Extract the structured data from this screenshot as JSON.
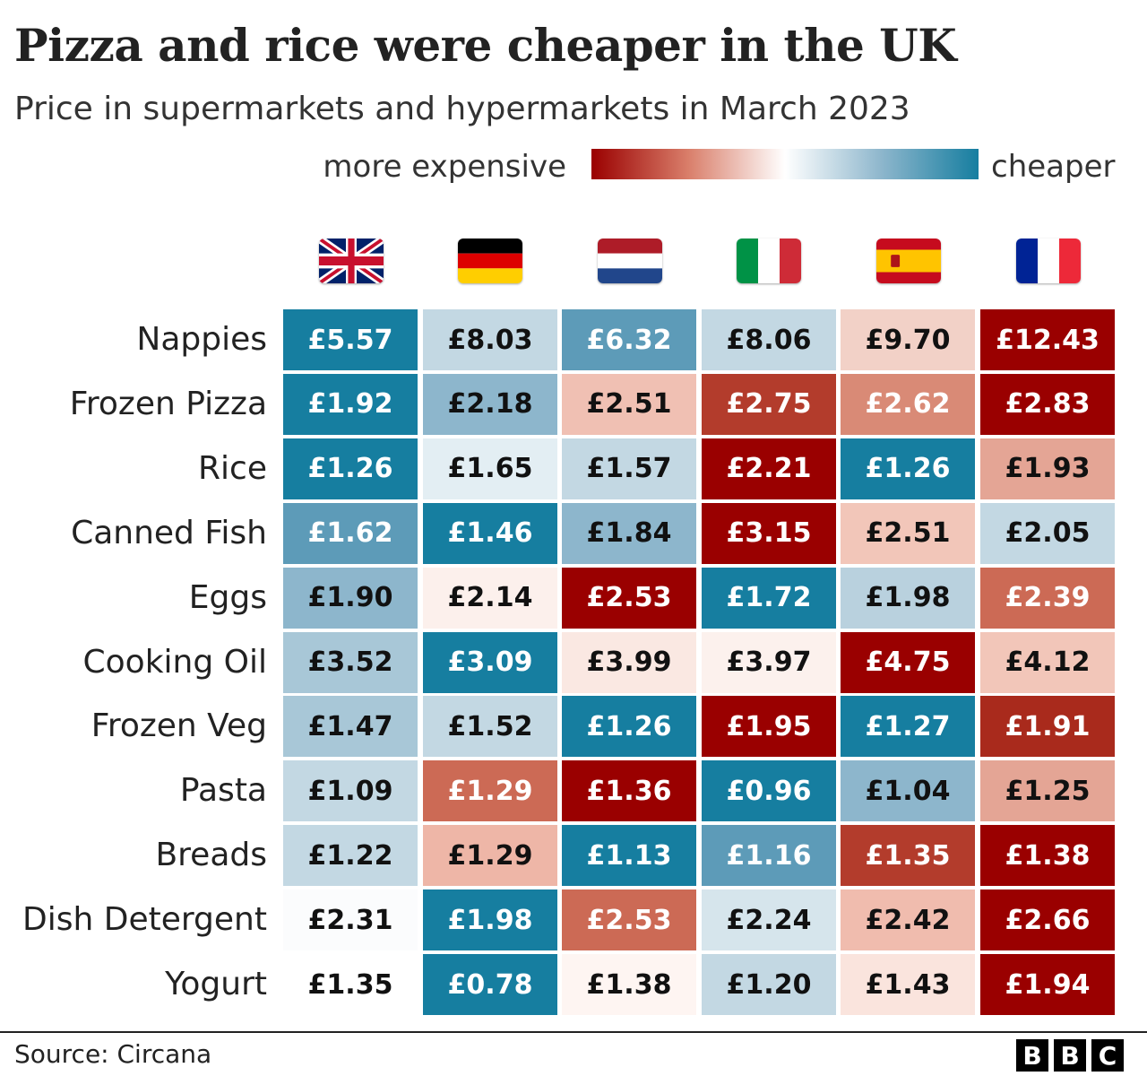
{
  "title": "Pizza and rice were cheaper in the UK",
  "subtitle": "Price in supermarkets and hypermarkets in March 2023",
  "legend": {
    "left_label": "more expensive",
    "right_label": "cheaper",
    "colors": [
      "#9a0000",
      "#ffffff",
      "#167ea0"
    ]
  },
  "footer": {
    "source": "Source: Circana",
    "logo": [
      "B",
      "B",
      "C"
    ]
  },
  "chart_data": {
    "type": "heatmap",
    "title": "Pizza and rice were cheaper in the UK",
    "subtitle": "Price in supermarkets and hypermarkets in March 2023",
    "columns": [
      {
        "icon": "uk-flag-icon"
      },
      {
        "icon": "germany-flag-icon"
      },
      {
        "icon": "netherlands-flag-icon"
      },
      {
        "icon": "italy-flag-icon"
      },
      {
        "icon": "spain-flag-icon"
      },
      {
        "icon": "france-flag-icon"
      }
    ],
    "rows": [
      {
        "label": "Nappies",
        "values": [
          "£5.57",
          "£8.03",
          "£6.32",
          "£8.06",
          "£9.70",
          "£12.43"
        ],
        "colors": [
          "#167ea0",
          "#c3d8e3",
          "#5d9bb8",
          "#c3d8e3",
          "#f2d1c7",
          "#9a0000"
        ]
      },
      {
        "label": "Frozen Pizza",
        "values": [
          "£1.92",
          "£2.18",
          "£2.51",
          "£2.75",
          "£2.62",
          "£2.83"
        ],
        "colors": [
          "#167ea0",
          "#8db6cc",
          "#f0c0b3",
          "#b33c2c",
          "#d98a76",
          "#9a0000"
        ]
      },
      {
        "label": "Rice",
        "values": [
          "£1.26",
          "£1.65",
          "£1.57",
          "£2.21",
          "£1.26",
          "£1.93"
        ],
        "colors": [
          "#167ea0",
          "#e3eef3",
          "#c3d8e3",
          "#9a0000",
          "#167ea0",
          "#e4a595"
        ]
      },
      {
        "label": "Canned Fish",
        "values": [
          "£1.62",
          "£1.46",
          "£1.84",
          "£3.15",
          "£2.51",
          "£2.05"
        ],
        "colors": [
          "#5d9bb8",
          "#167ea0",
          "#8db6cc",
          "#9a0000",
          "#f2c6b9",
          "#c3d8e3"
        ]
      },
      {
        "label": "Eggs",
        "values": [
          "£1.90",
          "£2.14",
          "£2.53",
          "£1.72",
          "£1.98",
          "£2.39"
        ],
        "colors": [
          "#8db6cc",
          "#fcf0ec",
          "#9a0000",
          "#167ea0",
          "#b9d1de",
          "#cc6a55"
        ]
      },
      {
        "label": "Cooking Oil",
        "values": [
          "£3.52",
          "£3.09",
          "£3.99",
          "£3.97",
          "£4.75",
          "£4.12"
        ],
        "colors": [
          "#a8c7d7",
          "#167ea0",
          "#fae8e2",
          "#fcf1ed",
          "#9a0000",
          "#f2c6b9"
        ]
      },
      {
        "label": "Frozen Veg",
        "values": [
          "£1.47",
          "£1.52",
          "£1.26",
          "£1.95",
          "£1.27",
          "£1.91"
        ],
        "colors": [
          "#a8c7d7",
          "#c3d8e3",
          "#167ea0",
          "#9a0000",
          "#167ea0",
          "#a92a1c"
        ]
      },
      {
        "label": "Pasta",
        "values": [
          "£1.09",
          "£1.29",
          "£1.36",
          "£0.96",
          "£1.04",
          "£1.25"
        ],
        "colors": [
          "#c3d8e3",
          "#cc6a55",
          "#9a0000",
          "#167ea0",
          "#8db6cc",
          "#e4a595"
        ]
      },
      {
        "label": "Breads",
        "values": [
          "£1.22",
          "£1.29",
          "£1.13",
          "£1.16",
          "£1.35",
          "£1.38"
        ],
        "colors": [
          "#c3d8e3",
          "#eeb6a7",
          "#167ea0",
          "#5d9bb8",
          "#b33c2c",
          "#9a0000"
        ]
      },
      {
        "label": "Dish Detergent",
        "values": [
          "£2.31",
          "£1.98",
          "£2.53",
          "£2.24",
          "£2.42",
          "£2.66"
        ],
        "colors": [
          "#fbfcfd",
          "#167ea0",
          "#cc6a55",
          "#d6e5ec",
          "#f0bcae",
          "#9a0000"
        ]
      },
      {
        "label": "Yogurt",
        "values": [
          "£1.35",
          "£0.78",
          "£1.38",
          "£1.20",
          "£1.43",
          "£1.94"
        ],
        "colors": [
          "#ffffff",
          "#167ea0",
          "#fef5f2",
          "#c3d8e3",
          "#fae4dd",
          "#9a0000"
        ]
      }
    ]
  }
}
